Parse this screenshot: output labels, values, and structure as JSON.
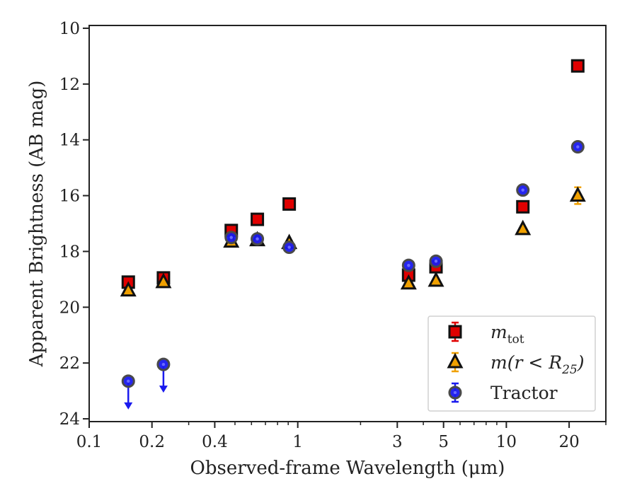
{
  "chart_data": {
    "type": "scatter",
    "title": "",
    "xlabel": "Observed-frame Wavelength (μm)",
    "ylabel": "Apparent Brightness (AB mag)",
    "xscale": "log",
    "xlim": [
      0.1,
      30
    ],
    "ylim": [
      24.1,
      9.9
    ],
    "y_inverted": true,
    "grid": false,
    "legend_position": "lower right",
    "x_ticks": [
      {
        "value": 0.1,
        "label": "0.1"
      },
      {
        "value": 0.2,
        "label": "0.2"
      },
      {
        "value": 0.4,
        "label": "0.4"
      },
      {
        "value": 1,
        "label": "1"
      },
      {
        "value": 3,
        "label": "3"
      },
      {
        "value": 5,
        "label": "5"
      },
      {
        "value": 10,
        "label": "10"
      },
      {
        "value": 20,
        "label": "20"
      }
    ],
    "y_ticks": [
      {
        "value": 10,
        "label": "10"
      },
      {
        "value": 12,
        "label": "12"
      },
      {
        "value": 14,
        "label": "14"
      },
      {
        "value": 16,
        "label": "16"
      },
      {
        "value": 18,
        "label": "18"
      },
      {
        "value": 20,
        "label": "20"
      },
      {
        "value": 22,
        "label": "22"
      },
      {
        "value": 24,
        "label": "24"
      }
    ],
    "series": [
      {
        "name": "m_tot",
        "legend_label": {
          "base": "m",
          "sub": "tot"
        },
        "marker": "square",
        "color": "#e00000",
        "points": [
          {
            "x": 0.154,
            "y": 19.1
          },
          {
            "x": 0.227,
            "y": 18.95
          },
          {
            "x": 0.48,
            "y": 17.25
          },
          {
            "x": 0.64,
            "y": 16.85
          },
          {
            "x": 0.91,
            "y": 16.3
          },
          {
            "x": 3.4,
            "y": 18.85
          },
          {
            "x": 4.6,
            "y": 18.55
          },
          {
            "x": 12.0,
            "y": 16.4
          },
          {
            "x": 22.0,
            "y": 11.35
          }
        ]
      },
      {
        "name": "m(r<R25)",
        "legend_label": {
          "base": "m(r < R",
          "sub": "25",
          "tail": ")"
        },
        "marker": "triangle",
        "color": "#f0a000",
        "points": [
          {
            "x": 0.154,
            "y": 19.4
          },
          {
            "x": 0.227,
            "y": 19.1
          },
          {
            "x": 0.48,
            "y": 17.65
          },
          {
            "x": 0.64,
            "y": 17.6
          },
          {
            "x": 0.91,
            "y": 17.7
          },
          {
            "x": 3.4,
            "y": 19.15
          },
          {
            "x": 4.6,
            "y": 19.05
          },
          {
            "x": 12.0,
            "y": 17.2
          },
          {
            "x": 22.0,
            "y": 16.0,
            "yerr": 0.3
          }
        ]
      },
      {
        "name": "Tractor",
        "marker": "circle",
        "color": "#1a1aee",
        "points": [
          {
            "x": 0.154,
            "y": 22.65,
            "upper_limit": true
          },
          {
            "x": 0.227,
            "y": 22.05,
            "upper_limit": true
          },
          {
            "x": 0.48,
            "y": 17.5
          },
          {
            "x": 0.64,
            "y": 17.55
          },
          {
            "x": 0.91,
            "y": 17.85
          },
          {
            "x": 3.4,
            "y": 18.5
          },
          {
            "x": 4.6,
            "y": 18.35
          },
          {
            "x": 12.0,
            "y": 15.8
          },
          {
            "x": 22.0,
            "y": 14.25
          }
        ]
      }
    ]
  }
}
